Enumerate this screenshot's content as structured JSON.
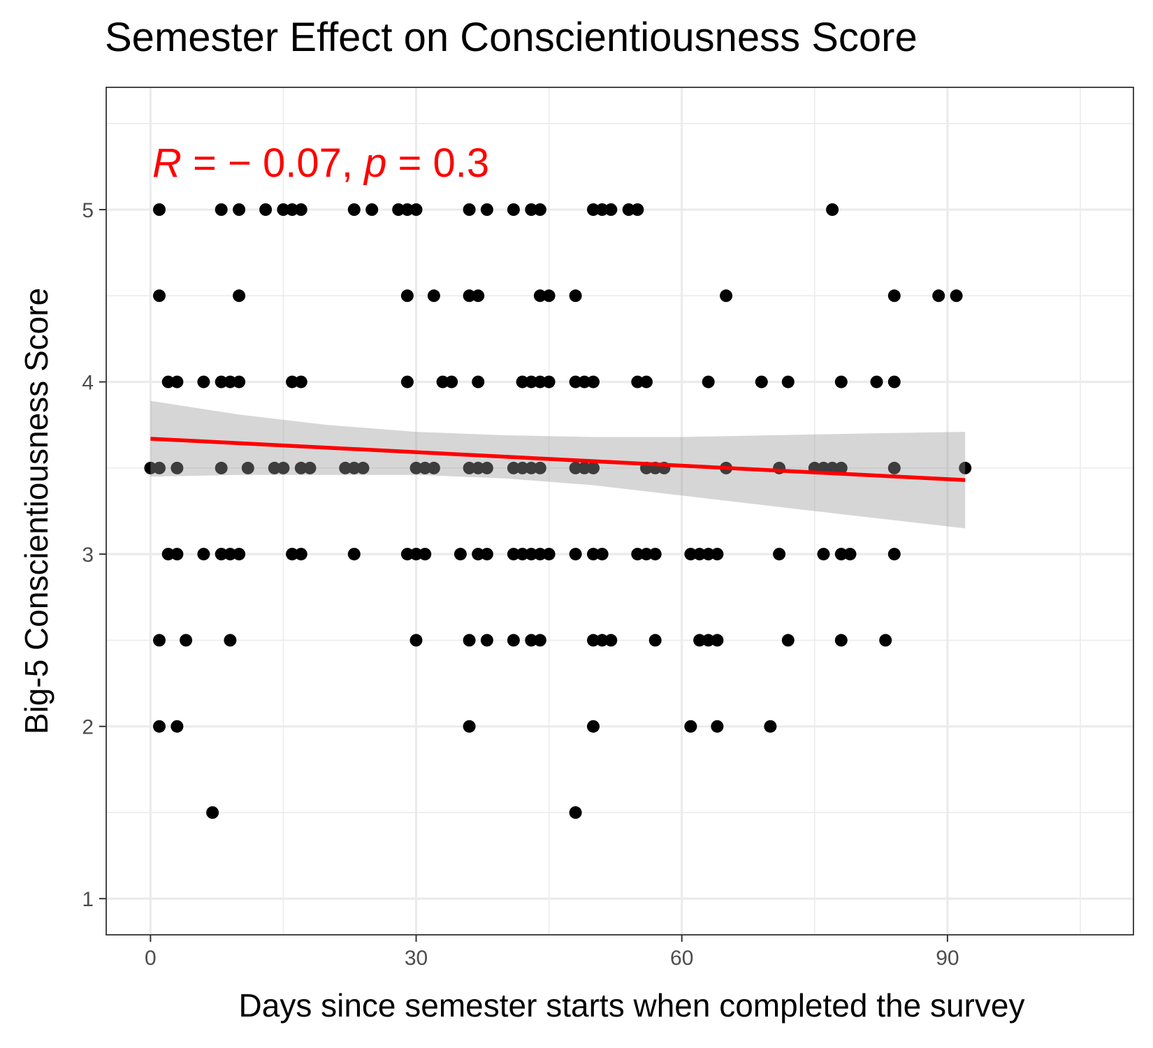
{
  "chart_data": {
    "type": "scatter",
    "title": "Semester Effect on Conscientiousness Score",
    "xlabel": "Days since semester starts when completed the survey",
    "ylabel": "Big-5 Conscientiousness Score",
    "xlim": [
      -5,
      111
    ],
    "ylim": [
      0.79,
      5.71
    ],
    "x_ticks": [
      0,
      30,
      60,
      90
    ],
    "y_ticks": [
      1,
      2,
      3,
      4,
      5
    ],
    "grid": true,
    "annotation": {
      "r_symbol": "R",
      "r_text": " = − 0.07, ",
      "p_symbol": "p",
      "p_text": " = 0.3",
      "color": "#ff0000"
    },
    "regression": {
      "x": [
        0,
        92
      ],
      "y": [
        3.67,
        3.43
      ],
      "ci_x": [
        0,
        10,
        20,
        30,
        40,
        50,
        60,
        70,
        80,
        92
      ],
      "ci_upper": [
        3.89,
        3.81,
        3.75,
        3.71,
        3.69,
        3.68,
        3.68,
        3.69,
        3.7,
        3.71
      ],
      "ci_lower": [
        3.45,
        3.46,
        3.46,
        3.46,
        3.44,
        3.4,
        3.34,
        3.28,
        3.22,
        3.15
      ],
      "color": "#ff0000",
      "band_color": "#999999"
    },
    "points": [
      [
        1,
        5
      ],
      [
        8,
        5
      ],
      [
        10,
        5
      ],
      [
        13,
        5
      ],
      [
        15,
        5
      ],
      [
        16,
        5
      ],
      [
        17,
        5
      ],
      [
        23,
        5
      ],
      [
        25,
        5
      ],
      [
        28,
        5
      ],
      [
        29,
        5
      ],
      [
        30,
        5
      ],
      [
        36,
        5
      ],
      [
        38,
        5
      ],
      [
        41,
        5
      ],
      [
        43,
        5
      ],
      [
        44,
        5
      ],
      [
        50,
        5
      ],
      [
        51,
        5
      ],
      [
        52,
        5
      ],
      [
        54,
        5
      ],
      [
        55,
        5
      ],
      [
        77,
        5
      ],
      [
        1,
        4.5
      ],
      [
        10,
        4.5
      ],
      [
        29,
        4.5
      ],
      [
        32,
        4.5
      ],
      [
        36,
        4.5
      ],
      [
        37,
        4.5
      ],
      [
        44,
        4.5
      ],
      [
        45,
        4.5
      ],
      [
        48,
        4.5
      ],
      [
        65,
        4.5
      ],
      [
        84,
        4.5
      ],
      [
        89,
        4.5
      ],
      [
        91,
        4.5
      ],
      [
        2,
        4
      ],
      [
        3,
        4
      ],
      [
        6,
        4
      ],
      [
        8,
        4
      ],
      [
        9,
        4
      ],
      [
        10,
        4
      ],
      [
        16,
        4
      ],
      [
        17,
        4
      ],
      [
        29,
        4
      ],
      [
        33,
        4
      ],
      [
        34,
        4
      ],
      [
        37,
        4
      ],
      [
        42,
        4
      ],
      [
        43,
        4
      ],
      [
        44,
        4
      ],
      [
        45,
        4
      ],
      [
        48,
        4
      ],
      [
        49,
        4
      ],
      [
        50,
        4
      ],
      [
        55,
        4
      ],
      [
        56,
        4
      ],
      [
        63,
        4
      ],
      [
        69,
        4
      ],
      [
        72,
        4
      ],
      [
        78,
        4
      ],
      [
        82,
        4
      ],
      [
        84,
        4
      ],
      [
        0,
        3.5
      ],
      [
        1,
        3.5
      ],
      [
        3,
        3.5
      ],
      [
        8,
        3.5
      ],
      [
        11,
        3.5
      ],
      [
        14,
        3.5
      ],
      [
        15,
        3.5
      ],
      [
        17,
        3.5
      ],
      [
        18,
        3.5
      ],
      [
        22,
        3.5
      ],
      [
        23,
        3.5
      ],
      [
        24,
        3.5
      ],
      [
        30,
        3.5
      ],
      [
        31,
        3.5
      ],
      [
        32,
        3.5
      ],
      [
        36,
        3.5
      ],
      [
        37,
        3.5
      ],
      [
        38,
        3.5
      ],
      [
        41,
        3.5
      ],
      [
        42,
        3.5
      ],
      [
        43,
        3.5
      ],
      [
        44,
        3.5
      ],
      [
        48,
        3.5
      ],
      [
        49,
        3.5
      ],
      [
        50,
        3.5
      ],
      [
        56,
        3.5
      ],
      [
        57,
        3.5
      ],
      [
        58,
        3.5
      ],
      [
        65,
        3.5
      ],
      [
        71,
        3.5
      ],
      [
        75,
        3.5
      ],
      [
        76,
        3.5
      ],
      [
        77,
        3.5
      ],
      [
        78,
        3.5
      ],
      [
        84,
        3.5
      ],
      [
        92,
        3.5
      ],
      [
        2,
        3
      ],
      [
        3,
        3
      ],
      [
        6,
        3
      ],
      [
        8,
        3
      ],
      [
        9,
        3
      ],
      [
        10,
        3
      ],
      [
        16,
        3
      ],
      [
        17,
        3
      ],
      [
        23,
        3
      ],
      [
        29,
        3
      ],
      [
        30,
        3
      ],
      [
        31,
        3
      ],
      [
        35,
        3
      ],
      [
        37,
        3
      ],
      [
        38,
        3
      ],
      [
        41,
        3
      ],
      [
        42,
        3
      ],
      [
        43,
        3
      ],
      [
        44,
        3
      ],
      [
        45,
        3
      ],
      [
        48,
        3
      ],
      [
        50,
        3
      ],
      [
        51,
        3
      ],
      [
        55,
        3
      ],
      [
        56,
        3
      ],
      [
        57,
        3
      ],
      [
        61,
        3
      ],
      [
        62,
        3
      ],
      [
        63,
        3
      ],
      [
        64,
        3
      ],
      [
        71,
        3
      ],
      [
        76,
        3
      ],
      [
        78,
        3
      ],
      [
        79,
        3
      ],
      [
        84,
        3
      ],
      [
        1,
        2.5
      ],
      [
        4,
        2.5
      ],
      [
        9,
        2.5
      ],
      [
        30,
        2.5
      ],
      [
        36,
        2.5
      ],
      [
        38,
        2.5
      ],
      [
        41,
        2.5
      ],
      [
        43,
        2.5
      ],
      [
        44,
        2.5
      ],
      [
        50,
        2.5
      ],
      [
        51,
        2.5
      ],
      [
        52,
        2.5
      ],
      [
        57,
        2.5
      ],
      [
        62,
        2.5
      ],
      [
        63,
        2.5
      ],
      [
        64,
        2.5
      ],
      [
        72,
        2.5
      ],
      [
        78,
        2.5
      ],
      [
        83,
        2.5
      ],
      [
        1,
        2
      ],
      [
        3,
        2
      ],
      [
        36,
        2
      ],
      [
        50,
        2
      ],
      [
        61,
        2
      ],
      [
        64,
        2
      ],
      [
        70,
        2
      ],
      [
        7,
        1.5
      ],
      [
        48,
        1.5
      ]
    ]
  }
}
